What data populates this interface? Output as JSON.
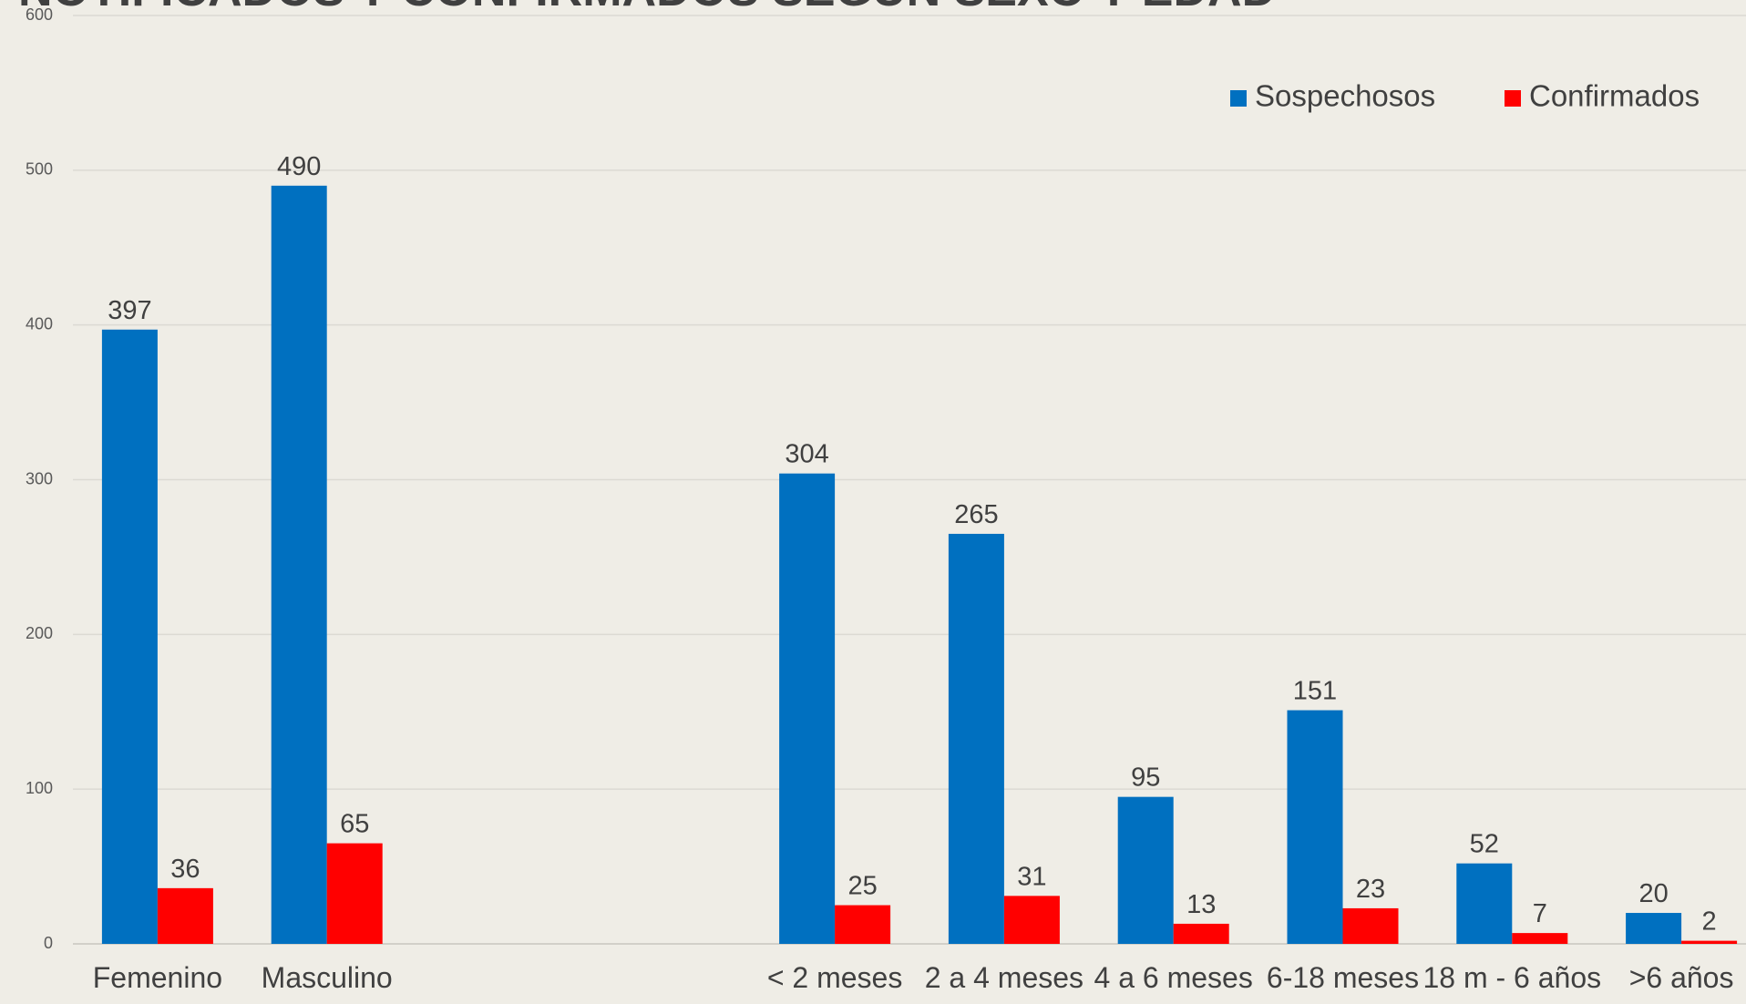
{
  "chart_data": {
    "type": "bar",
    "title": "NOTIFICADOS Y CONFIRMADOS SEGÚN SEXO Y EDAD",
    "categories": [
      "Femenino",
      "Masculino",
      null,
      null,
      "< 2 meses",
      "2 a 4 meses",
      "4 a 6 meses",
      "6-18 meses",
      "18 m - 6 años",
      ">6 años"
    ],
    "series": [
      {
        "name": "Sospechosos",
        "color": "#0070c0",
        "values": [
          397,
          490,
          null,
          null,
          304,
          265,
          95,
          151,
          52,
          20
        ]
      },
      {
        "name": "Confirmados",
        "color": "#ff0000",
        "values": [
          36,
          65,
          null,
          null,
          25,
          31,
          13,
          23,
          7,
          2
        ]
      }
    ],
    "ylim": [
      0,
      600
    ],
    "yticks": [
      0,
      100,
      200,
      300,
      400,
      500,
      600
    ],
    "grid": true,
    "legend": "top-right"
  }
}
